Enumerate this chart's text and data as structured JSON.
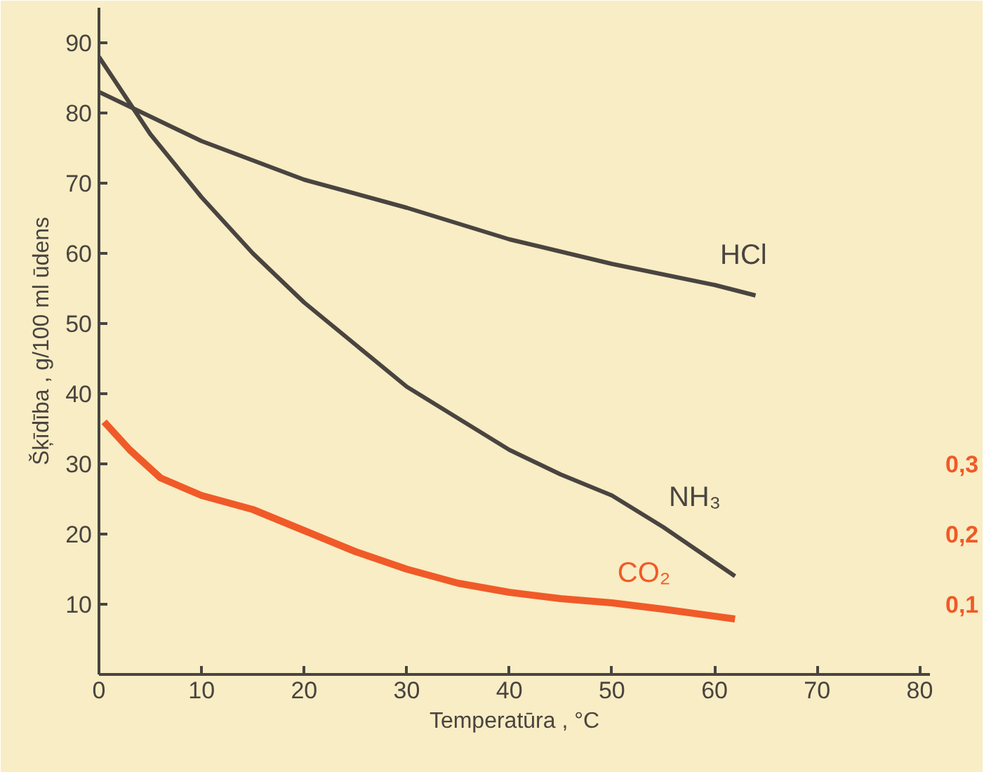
{
  "chart_data": {
    "type": "line",
    "xlabel": "Temperatūra , °C",
    "ylabel": "Šķīdība , g/100 ml ūdens",
    "xlim": [
      0,
      81
    ],
    "xticks": [
      0,
      10,
      20,
      30,
      40,
      50,
      60,
      70,
      80
    ],
    "ylim": [
      0,
      95
    ],
    "yticks": [
      10,
      20,
      30,
      40,
      50,
      60,
      70,
      80,
      90
    ],
    "y2lim": [
      0,
      0.95
    ],
    "y2ticks": [
      {
        "value": 0.1,
        "label": "0,1"
      },
      {
        "value": 0.2,
        "label": "0,2"
      },
      {
        "value": 0.3,
        "label": "0,3"
      }
    ],
    "grid": false,
    "marker": "none",
    "line_style": "solid",
    "series": [
      {
        "name": "HCl",
        "color": "#4a4440",
        "x": [
          0,
          5,
          10,
          20,
          30,
          40,
          50,
          60,
          64
        ],
        "values": [
          83,
          79.5,
          76,
          70.5,
          66.5,
          62,
          58.5,
          55.5,
          54
        ]
      },
      {
        "name": "NH₃",
        "color": "#4a4440",
        "x": [
          0,
          5,
          10,
          15,
          20,
          25,
          30,
          35,
          40,
          45,
          50,
          55,
          60,
          62
        ],
        "values": [
          88,
          77,
          68,
          60,
          53,
          47,
          41,
          36.5,
          32,
          28.5,
          25.5,
          21,
          16,
          14
        ]
      },
      {
        "name": "CO₂",
        "color": "#f05a28",
        "axis": "y2",
        "x": [
          0.5,
          3,
          6,
          10,
          15,
          20,
          25,
          30,
          35,
          40,
          45,
          50,
          55,
          62
        ],
        "values": [
          0.36,
          0.32,
          0.28,
          0.255,
          0.235,
          0.205,
          0.175,
          0.15,
          0.13,
          0.117,
          0.108,
          0.102,
          0.093,
          0.079
        ]
      }
    ]
  }
}
